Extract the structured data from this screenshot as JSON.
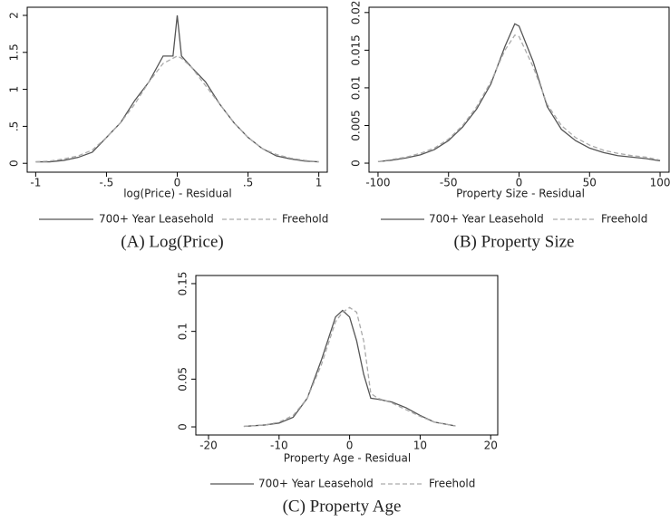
{
  "chart_data": [
    {
      "type": "line",
      "x_label": "log(Price) - Residual",
      "caption": "(A) Log(Price)",
      "x": [
        -1,
        -0.9,
        -0.8,
        -0.7,
        -0.6,
        -0.5,
        -0.4,
        -0.3,
        -0.2,
        -0.1,
        -0.03,
        0,
        0.03,
        0.1,
        0.2,
        0.3,
        0.4,
        0.5,
        0.6,
        0.7,
        0.8,
        0.9,
        1
      ],
      "series": [
        {
          "name": "700+ Year Leasehold",
          "color": "#555555",
          "dash": false,
          "values": [
            0.02,
            0.02,
            0.04,
            0.08,
            0.15,
            0.35,
            0.55,
            0.85,
            1.1,
            1.45,
            1.45,
            2.0,
            1.45,
            1.3,
            1.1,
            0.8,
            0.55,
            0.35,
            0.2,
            0.1,
            0.06,
            0.03,
            0.02
          ]
        },
        {
          "name": "Freehold",
          "color": "#aaaaaa",
          "dash": true,
          "values": [
            0.02,
            0.03,
            0.06,
            0.1,
            0.18,
            0.35,
            0.55,
            0.8,
            1.1,
            1.35,
            1.42,
            1.45,
            1.42,
            1.3,
            1.05,
            0.8,
            0.55,
            0.35,
            0.2,
            0.12,
            0.07,
            0.04,
            0.02
          ]
        }
      ],
      "xlim": [
        -1.06,
        1.06
      ],
      "xticks": [
        -1,
        {
          "value": -0.5,
          "label": "-.5"
        },
        0,
        {
          "value": 0.5,
          "label": ".5"
        },
        1
      ],
      "ylim": [
        -0.12,
        2.11
      ],
      "yticks": [
        0,
        {
          "value": 0.5,
          "label": ".5"
        },
        1,
        1.5,
        2
      ]
    },
    {
      "type": "line",
      "x_label": "Property Size - Residual",
      "caption": "(B) Property Size",
      "x": [
        -100,
        -90,
        -80,
        -70,
        -60,
        -50,
        -40,
        -30,
        -20,
        -10,
        -3,
        0,
        10,
        20,
        30,
        40,
        50,
        60,
        70,
        80,
        90,
        100
      ],
      "series": [
        {
          "name": "700+ Year Leasehold",
          "color": "#555555",
          "dash": false,
          "values": [
            0.0002,
            0.0004,
            0.0007,
            0.0011,
            0.0018,
            0.003,
            0.0048,
            0.0072,
            0.0105,
            0.0155,
            0.0185,
            0.0182,
            0.0135,
            0.0075,
            0.0045,
            0.003,
            0.002,
            0.0014,
            0.001,
            0.0008,
            0.0006,
            0.0003
          ]
        },
        {
          "name": "Freehold",
          "color": "#aaaaaa",
          "dash": true,
          "values": [
            0.0002,
            0.0005,
            0.0008,
            0.0013,
            0.002,
            0.0032,
            0.005,
            0.0075,
            0.0108,
            0.015,
            0.017,
            0.0168,
            0.0128,
            0.0078,
            0.005,
            0.0034,
            0.0024,
            0.0017,
            0.0013,
            0.001,
            0.0008,
            0.0004
          ]
        }
      ],
      "xlim": [
        -106.4,
        106.4
      ],
      "xticks": [
        -100,
        -50,
        0,
        50,
        100
      ],
      "ylim": [
        -0.0012,
        0.0207
      ],
      "yticks": [
        0,
        0.005,
        0.01,
        0.015,
        0.02
      ]
    },
    {
      "type": "line",
      "x_label": "Property Age - Residual",
      "caption": "(C) Property Age",
      "x": [
        -15,
        -12,
        -10,
        -8,
        -6,
        -4,
        -2,
        -1,
        0,
        1,
        2,
        3,
        4,
        6,
        8,
        10,
        12,
        15
      ],
      "series": [
        {
          "name": "700+ Year Leasehold",
          "color": "#555555",
          "dash": false,
          "values": [
            0.0005,
            0.002,
            0.004,
            0.01,
            0.03,
            0.07,
            0.115,
            0.122,
            0.115,
            0.09,
            0.055,
            0.03,
            0.029,
            0.026,
            0.02,
            0.012,
            0.005,
            0.001
          ]
        },
        {
          "name": "Freehold",
          "color": "#aaaaaa",
          "dash": true,
          "values": [
            0.0005,
            0.002,
            0.005,
            0.012,
            0.03,
            0.065,
            0.11,
            0.12,
            0.125,
            0.12,
            0.09,
            0.035,
            0.03,
            0.025,
            0.018,
            0.011,
            0.005,
            0.001
          ]
        }
      ],
      "xlim": [
        -21.8,
        21.0
      ],
      "xticks": [
        -20,
        -10,
        0,
        10,
        20
      ],
      "ylim": [
        -0.0085,
        0.1585
      ],
      "yticks": [
        0,
        0.05,
        0.1,
        0.15
      ]
    }
  ]
}
